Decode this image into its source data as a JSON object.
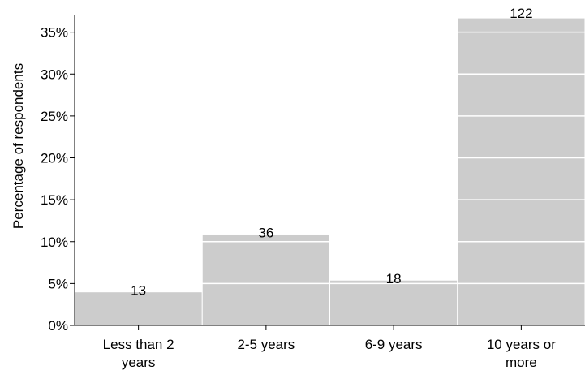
{
  "chart_data": {
    "type": "bar",
    "title": "",
    "xlabel": "",
    "ylabel": "Percentage of respondents",
    "categories": [
      [
        "Less than 2",
        "years"
      ],
      [
        "2-5 years"
      ],
      [
        "6-9 years"
      ],
      [
        "10 years or",
        "more"
      ]
    ],
    "values": [
      4.0,
      10.9,
      5.4,
      36.7
    ],
    "data_labels": [
      "13",
      "36",
      "18",
      "122"
    ],
    "yticks": [
      0,
      5,
      10,
      15,
      20,
      25,
      30,
      35
    ],
    "ytick_labels": [
      "0%",
      "5%",
      "10%",
      "15%",
      "20%",
      "25%",
      "30%",
      "35%"
    ],
    "ylim": [
      0,
      37
    ],
    "grid": false,
    "colors": {
      "bar": "#cccccc",
      "bar_line": "#ffffff",
      "axis": "#000000"
    }
  }
}
